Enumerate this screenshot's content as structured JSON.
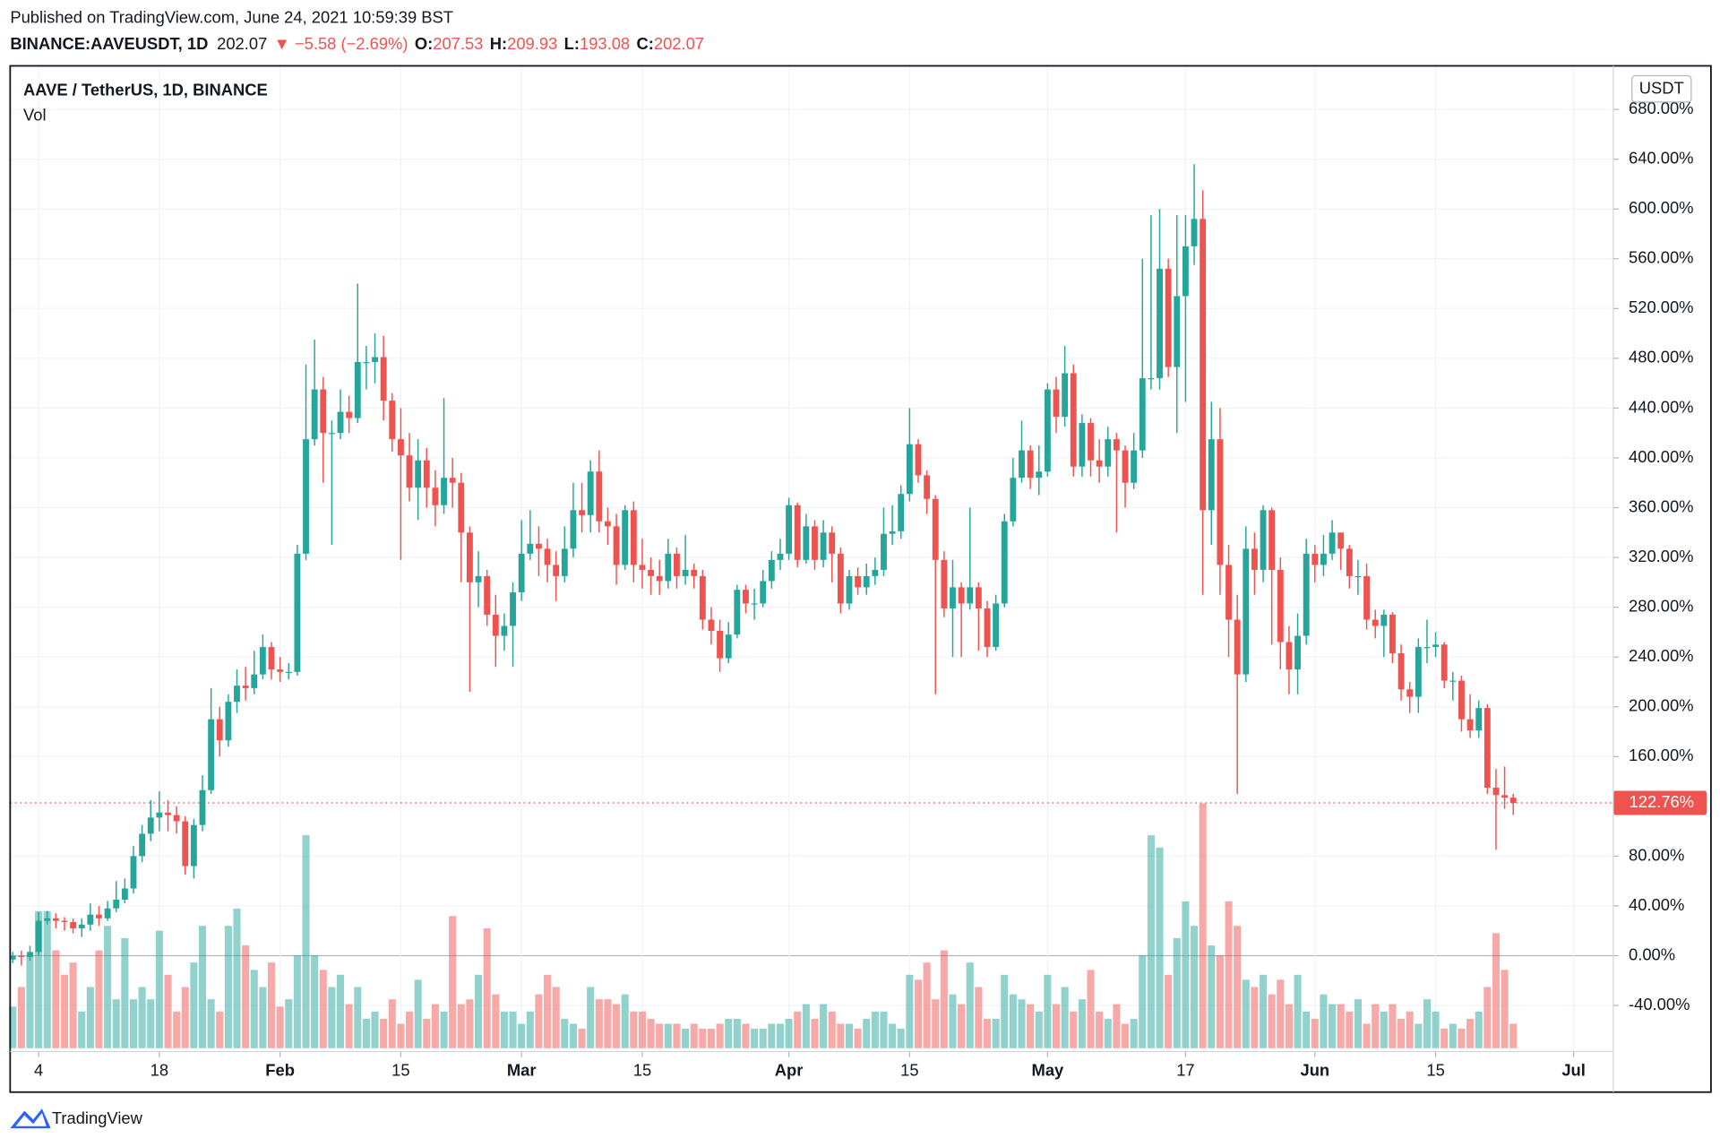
{
  "header": {
    "published": "Published on TradingView.com, June 24, 2021 10:59:39 BST",
    "symbol": "BINANCE:AAVEUSDT, 1D",
    "last": "202.07",
    "change": "▼ −5.58 (−2.69%)",
    "ohlc": [
      {
        "label": "O:",
        "value": "207.53"
      },
      {
        "label": "H:",
        "value": "209.93"
      },
      {
        "label": "L:",
        "value": "193.08"
      },
      {
        "label": "C:",
        "value": "202.07"
      }
    ]
  },
  "footer": {
    "brand": "TradingView"
  },
  "chart_data": {
    "type": "candlestick",
    "title": "AAVE / TetherUS, 1D, BINANCE",
    "volume_title": "Vol",
    "currency": "USDT",
    "up_color": "#26a69a",
    "down_color": "#ef5350",
    "volume_up_color": "rgba(38,166,154,0.5)",
    "volume_down_color": "rgba(239,83,80,0.5)",
    "grid": true,
    "xlim": [
      -0.3,
      185.6
    ],
    "ylim": [
      -77,
      715
    ],
    "volume_lim": [
      0,
      100
    ],
    "xticks": [
      {
        "value": 3,
        "label": "4"
      },
      {
        "value": 17,
        "label": "18"
      },
      {
        "value": 31,
        "label": "Feb"
      },
      {
        "value": 45,
        "label": "15"
      },
      {
        "value": 59,
        "label": "Mar"
      },
      {
        "value": 73,
        "label": "15"
      },
      {
        "value": 90,
        "label": "Apr"
      },
      {
        "value": 104,
        "label": "15"
      },
      {
        "value": 120,
        "label": "May"
      },
      {
        "value": 136,
        "label": "17"
      },
      {
        "value": 151,
        "label": "Jun"
      },
      {
        "value": 165,
        "label": "15"
      },
      {
        "value": 181,
        "label": "Jul"
      }
    ],
    "yticks": [
      {
        "value": -40,
        "label": "-40.00%"
      },
      {
        "value": 0,
        "label": "0.00%"
      },
      {
        "value": 40,
        "label": "40.00%"
      },
      {
        "value": 80,
        "label": "80.00%"
      },
      {
        "value": 120,
        "label": "120.00%"
      },
      {
        "value": 160,
        "label": "160.00%"
      },
      {
        "value": 200,
        "label": "200.00%"
      },
      {
        "value": 240,
        "label": "240.00%"
      },
      {
        "value": 280,
        "label": "280.00%"
      },
      {
        "value": 320,
        "label": "320.00%"
      },
      {
        "value": 360,
        "label": "360.00%"
      },
      {
        "value": 400,
        "label": "400.00%"
      },
      {
        "value": 440,
        "label": "440.00%"
      },
      {
        "value": 480,
        "label": "480.00%"
      },
      {
        "value": 520,
        "label": "520.00%"
      },
      {
        "value": 560,
        "label": "560.00%"
      },
      {
        "value": 600,
        "label": "600.00%"
      },
      {
        "value": 640,
        "label": "640.00%"
      },
      {
        "value": 680,
        "label": "680.00%"
      }
    ],
    "open": [
      -3,
      0,
      -1,
      3,
      28,
      30,
      28,
      27,
      22,
      25,
      33,
      30,
      38,
      45,
      54,
      80,
      98,
      111,
      115,
      113,
      108,
      72,
      105,
      133,
      190,
      173,
      204,
      217,
      215,
      226,
      248,
      230,
      228,
      228,
      323,
      415,
      455,
      420,
      420,
      437,
      432,
      477,
      477,
      481,
      446,
      415,
      402,
      376,
      398,
      376,
      362,
      384,
      380,
      340,
      300,
      305,
      274,
      257,
      265,
      292,
      323,
      331,
      327,
      314,
      305,
      327,
      358,
      354,
      389,
      349,
      345,
      314,
      358,
      314,
      310,
      305,
      301,
      323,
      305,
      310,
      305,
      270,
      261,
      239,
      258,
      294,
      283,
      283,
      301,
      318,
      323,
      362,
      318,
      345,
      318,
      340,
      323,
      283,
      305,
      296,
      305,
      310,
      339,
      341,
      371,
      411,
      386,
      367,
      318,
      279,
      296,
      283,
      296,
      279,
      248,
      283,
      349,
      384,
      406,
      384,
      389,
      455,
      433,
      468,
      393,
      428,
      398,
      393,
      415,
      406,
      380,
      406,
      464,
      464,
      552,
      473,
      530,
      570,
      592,
      358,
      415,
      314,
      270,
      226,
      327,
      310,
      358,
      310,
      252,
      230,
      257,
      323,
      314,
      323,
      340,
      327,
      305,
      305,
      270,
      265,
      274,
      243,
      214,
      208,
      248,
      248,
      250,
      221,
      221,
      190,
      181,
      199,
      135,
      129,
      127
    ],
    "high": [
      3,
      4,
      8,
      35,
      36,
      34,
      31,
      30,
      30,
      42,
      40,
      44,
      60,
      62,
      88,
      105,
      125,
      132,
      125,
      120,
      112,
      110,
      145,
      215,
      200,
      210,
      230,
      232,
      245,
      258,
      252,
      240,
      235,
      330,
      475,
      495,
      465,
      430,
      455,
      450,
      540,
      490,
      500,
      498,
      452,
      440,
      420,
      415,
      408,
      390,
      448,
      400,
      388,
      345,
      325,
      310,
      290,
      275,
      300,
      350,
      358,
      345,
      335,
      325,
      345,
      380,
      380,
      398,
      406,
      360,
      355,
      362,
      365,
      335,
      320,
      318,
      335,
      328,
      338,
      315,
      310,
      280,
      270,
      268,
      298,
      298,
      295,
      310,
      325,
      335,
      368,
      364,
      355,
      350,
      350,
      345,
      328,
      310,
      312,
      315,
      320,
      360,
      362,
      378,
      440,
      415,
      390,
      370,
      325,
      318,
      300,
      360,
      300,
      285,
      290,
      355,
      400,
      430,
      410,
      410,
      460,
      465,
      490,
      475,
      435,
      432,
      415,
      425,
      420,
      410,
      420,
      560,
      595,
      600,
      560,
      595,
      595,
      636,
      615,
      445,
      440,
      330,
      290,
      345,
      340,
      362,
      360,
      320,
      265,
      275,
      335,
      330,
      338,
      350,
      340,
      330,
      318,
      315,
      278,
      278,
      276,
      250,
      220,
      255,
      270,
      260,
      252,
      228,
      225,
      210,
      205,
      202,
      150,
      152,
      130
    ],
    "low": [
      -6,
      -8,
      -4,
      0,
      25,
      22,
      20,
      18,
      15,
      20,
      24,
      28,
      35,
      42,
      50,
      75,
      92,
      100,
      100,
      98,
      65,
      62,
      100,
      130,
      160,
      168,
      195,
      205,
      210,
      222,
      222,
      220,
      222,
      225,
      318,
      410,
      380,
      330,
      415,
      420,
      428,
      455,
      460,
      430,
      405,
      318,
      365,
      350,
      360,
      345,
      355,
      360,
      300,
      212,
      280,
      265,
      232,
      245,
      232,
      285,
      318,
      305,
      300,
      285,
      300,
      320,
      340,
      340,
      340,
      330,
      298,
      310,
      300,
      295,
      290,
      290,
      295,
      295,
      298,
      295,
      262,
      250,
      228,
      235,
      255,
      275,
      270,
      280,
      295,
      310,
      318,
      312,
      315,
      310,
      312,
      300,
      275,
      278,
      290,
      290,
      298,
      305,
      330,
      335,
      365,
      380,
      355,
      210,
      272,
      240,
      240,
      278,
      245,
      240,
      245,
      280,
      345,
      380,
      375,
      370,
      385,
      420,
      425,
      385,
      385,
      385,
      380,
      385,
      340,
      360,
      375,
      400,
      455,
      455,
      465,
      420,
      445,
      555,
      290,
      330,
      290,
      240,
      130,
      220,
      290,
      300,
      250,
      230,
      210,
      210,
      250,
      300,
      305,
      318,
      310,
      295,
      290,
      262,
      255,
      240,
      235,
      205,
      195,
      195,
      235,
      240,
      215,
      205,
      180,
      175,
      175,
      130,
      85,
      118,
      113
    ],
    "close": [
      0,
      -1,
      3,
      28,
      30,
      28,
      27,
      22,
      25,
      33,
      30,
      38,
      45,
      54,
      80,
      98,
      111,
      115,
      113,
      108,
      72,
      105,
      133,
      190,
      173,
      204,
      217,
      215,
      226,
      248,
      230,
      228,
      228,
      323,
      415,
      455,
      420,
      420,
      437,
      432,
      477,
      477,
      481,
      446,
      415,
      402,
      376,
      398,
      376,
      362,
      384,
      380,
      340,
      300,
      305,
      274,
      257,
      265,
      292,
      323,
      331,
      327,
      314,
      305,
      327,
      358,
      354,
      389,
      349,
      345,
      314,
      358,
      314,
      310,
      305,
      301,
      323,
      305,
      310,
      305,
      270,
      261,
      239,
      258,
      294,
      283,
      283,
      301,
      318,
      323,
      362,
      318,
      345,
      318,
      340,
      323,
      283,
      305,
      296,
      305,
      310,
      339,
      341,
      371,
      411,
      386,
      367,
      318,
      279,
      296,
      283,
      296,
      279,
      248,
      283,
      349,
      384,
      406,
      384,
      389,
      455,
      433,
      468,
      393,
      428,
      398,
      393,
      415,
      406,
      380,
      406,
      464,
      464,
      552,
      473,
      530,
      570,
      592,
      358,
      415,
      314,
      270,
      226,
      327,
      310,
      358,
      310,
      252,
      230,
      257,
      323,
      314,
      323,
      340,
      327,
      305,
      305,
      270,
      265,
      274,
      243,
      214,
      208,
      248,
      248,
      250,
      221,
      221,
      190,
      181,
      199,
      135,
      129,
      127,
      122.76
    ],
    "last_label": "122.76%",
    "volume": [
      17,
      25,
      38,
      56,
      56,
      40,
      30,
      35,
      15,
      25,
      40,
      50,
      20,
      45,
      20,
      25,
      20,
      48,
      30,
      15,
      25,
      35,
      50,
      20,
      15,
      50,
      57,
      42,
      32,
      25,
      35,
      17,
      20,
      38,
      87,
      38,
      32,
      25,
      30,
      18,
      25,
      12,
      15,
      12,
      20,
      10,
      15,
      28,
      12,
      18,
      15,
      54,
      18,
      20,
      30,
      49,
      22,
      15,
      15,
      10,
      15,
      22,
      30,
      25,
      12,
      10,
      8,
      25,
      20,
      20,
      18,
      22,
      15,
      15,
      12,
      10,
      10,
      10,
      8,
      10,
      8,
      8,
      10,
      12,
      12,
      10,
      8,
      8,
      10,
      10,
      12,
      15,
      18,
      12,
      18,
      15,
      10,
      10,
      8,
      12,
      15,
      15,
      10,
      8,
      30,
      28,
      35,
      20,
      40,
      22,
      18,
      35,
      25,
      12,
      12,
      30,
      22,
      20,
      18,
      15,
      30,
      18,
      25,
      15,
      20,
      32,
      15,
      12,
      18,
      10,
      12,
      38,
      87,
      82,
      30,
      45,
      60,
      50,
      100,
      42,
      38,
      60,
      50,
      28,
      25,
      30,
      22,
      28,
      18,
      30,
      15,
      12,
      22,
      18,
      18,
      15,
      20,
      10,
      18,
      15,
      18,
      12,
      15,
      10,
      20,
      15,
      8,
      10,
      8,
      12,
      15,
      25,
      47,
      32,
      10
    ]
  }
}
